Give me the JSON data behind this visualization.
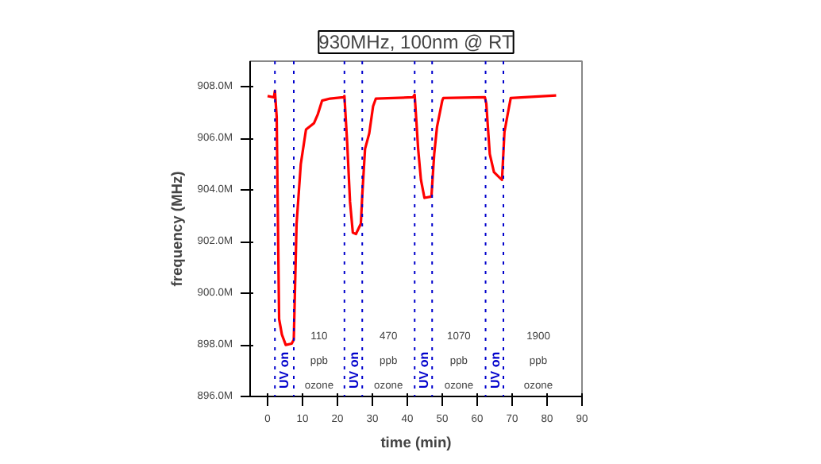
{
  "chart_data": {
    "type": "line",
    "title": "930MHz, 100nm @ RT",
    "xlabel": "time (min)",
    "ylabel": "frequency (MHz)",
    "series": [
      {
        "color": "#ff0000",
        "x": [
          0,
          1.8,
          2.1,
          2.6,
          3.3,
          4.1,
          5.2,
          6.9,
          7.5,
          8.3,
          9.5,
          11,
          13.3,
          14.4,
          15.6,
          17.9,
          21.7,
          22,
          22.8,
          23.6,
          24.4,
          25.3,
          26.7,
          27.1,
          27.9,
          29.1,
          30.2,
          31,
          41.6,
          42.1,
          43.1,
          43.9,
          44.9,
          46.9,
          47.7,
          48.5,
          50,
          50.3,
          62.2,
          62.6,
          63.6,
          64.8,
          66.3,
          67.1,
          67.8,
          68.6,
          69.6,
          82.6
        ],
        "values": [
          907.65,
          907.6,
          907.85,
          906.85,
          899.0,
          898.4,
          898.0,
          898.05,
          898.2,
          902.7,
          905.0,
          906.35,
          906.6,
          906.95,
          907.47,
          907.55,
          907.6,
          907.65,
          905.8,
          903.55,
          902.35,
          902.3,
          902.7,
          903.8,
          905.6,
          906.2,
          907.25,
          907.55,
          907.6,
          907.7,
          905.6,
          904.4,
          903.7,
          903.75,
          905.4,
          906.45,
          907.47,
          907.57,
          907.6,
          907.36,
          905.4,
          904.7,
          904.5,
          904.4,
          906.25,
          906.85,
          907.57,
          907.67
        ]
      }
    ],
    "xlim": [
      -5,
      90
    ],
    "xticks": [
      0,
      10,
      20,
      30,
      40,
      50,
      60,
      70,
      80,
      90
    ],
    "ylim": [
      896,
      909
    ],
    "yticks": [
      {
        "value": 896,
        "label": "896.0M"
      },
      {
        "value": 898,
        "label": "898.0M"
      },
      {
        "value": 900,
        "label": "900.0M"
      },
      {
        "value": 902,
        "label": "902.0M"
      },
      {
        "value": 904,
        "label": "904.0M"
      },
      {
        "value": 906,
        "label": "906.0M"
      },
      {
        "value": 908,
        "label": "908.0M"
      }
    ],
    "ref_lines": [
      {
        "axis": "x",
        "value": 2.1,
        "label": "UV on",
        "color": "#0000cc",
        "line_style": "dotted"
      },
      {
        "axis": "x",
        "value": 7.5,
        "color": "#0000cc",
        "line_style": "dotted"
      },
      {
        "axis": "x",
        "value": 22,
        "label": "UV on",
        "color": "#0000cc",
        "line_style": "dotted"
      },
      {
        "axis": "x",
        "value": 27.1,
        "color": "#0000cc",
        "line_style": "dotted"
      },
      {
        "axis": "x",
        "value": 42.1,
        "label": "UV on",
        "color": "#0000cc",
        "line_style": "dotted"
      },
      {
        "axis": "x",
        "value": 47.1,
        "color": "#0000cc",
        "line_style": "dotted"
      },
      {
        "axis": "x",
        "value": 62.4,
        "label": "UV on",
        "color": "#0000cc",
        "line_style": "dotted"
      },
      {
        "axis": "x",
        "value": 67.5,
        "color": "#0000cc",
        "line_style": "dotted"
      }
    ],
    "annotations": [
      "110\nppb\nozone",
      "470\nppb\nozone",
      "1070\nppb\nozone",
      "1900\nppb\nozone"
    ],
    "grid": false,
    "marker": "none",
    "line_style": "solid"
  }
}
